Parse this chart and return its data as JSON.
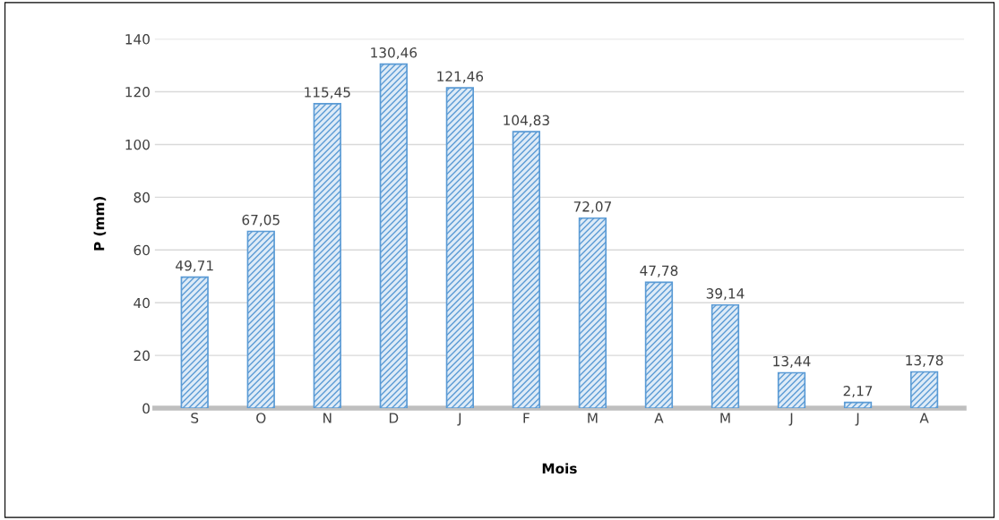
{
  "chart_data": {
    "type": "bar",
    "xlabel": "Mois",
    "ylabel": "P (mm)",
    "categories": [
      "S",
      "O",
      "N",
      "D",
      "J",
      "F",
      "M",
      "A",
      "M",
      "J",
      "J",
      "A"
    ],
    "values": [
      49.71,
      67.05,
      115.45,
      130.46,
      121.46,
      104.83,
      72.07,
      47.78,
      39.14,
      13.44,
      2.17,
      13.78
    ],
    "value_labels": [
      "49,71",
      "67,05",
      "115,45",
      "130,46",
      "121,46",
      "104,83",
      "72,07",
      "47,78",
      "39,14",
      "13,44",
      "2,17",
      "13,78"
    ],
    "color": "#5b9bd5",
    "ylim": [
      0,
      140
    ],
    "yticks": [
      0,
      20,
      40,
      60,
      80,
      100,
      120,
      140
    ],
    "grid": "y",
    "legend": false
  }
}
